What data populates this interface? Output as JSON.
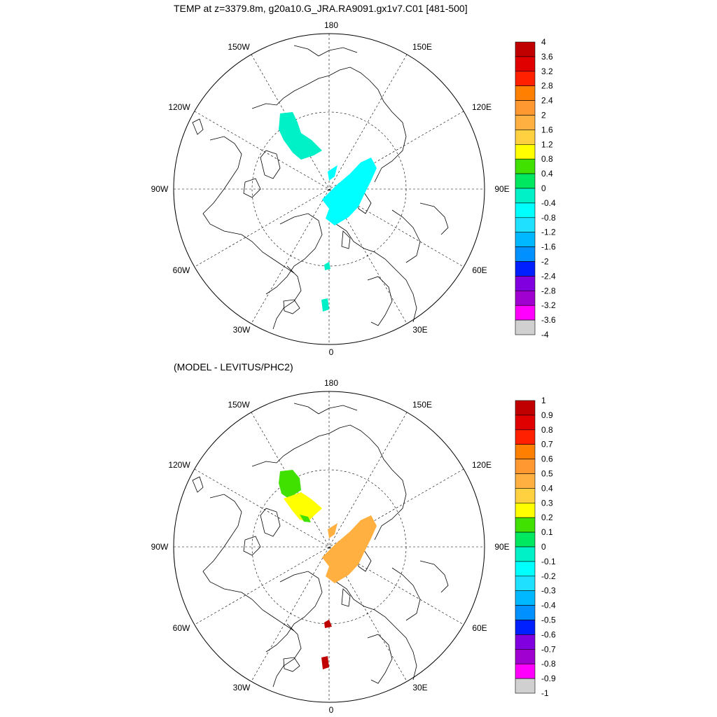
{
  "top_panel": {
    "title": "TEMP at z=3379.8m, g20a10.G_JRA.RA9091.gx1v7.C01 [481-500]",
    "longitude_labels": [
      "180",
      "150E",
      "120E",
      "90E",
      "60E",
      "30E",
      "0",
      "30W",
      "60W",
      "90W",
      "120W",
      "150W"
    ],
    "colorbar": {
      "labels": [
        "4",
        "3.6",
        "3.2",
        "2.8",
        "2.4",
        "2",
        "1.6",
        "1.2",
        "0.8",
        "0.4",
        "0",
        "-0.4",
        "-0.8",
        "-1.2",
        "-1.6",
        "-2",
        "-2.4",
        "-2.8",
        "-3.2",
        "-3.6",
        "-4"
      ],
      "colors": [
        "#c00000",
        "#e00000",
        "#ff2000",
        "#ff8000",
        "#ff9830",
        "#ffb040",
        "#ffd040",
        "#ffff00",
        "#40e000",
        "#00e860",
        "#00f0c8",
        "#00ffff",
        "#20e0ff",
        "#00b8ff",
        "#0090ff",
        "#0020ff",
        "#8000e0",
        "#a000d0",
        "#ff00ff",
        "#d0d0d0",
        "#707070"
      ]
    }
  },
  "bottom_panel": {
    "title": "(MODEL - LEVITUS/PHC2)",
    "longitude_labels": [
      "180",
      "150E",
      "120E",
      "90E",
      "60E",
      "30E",
      "0",
      "30W",
      "60W",
      "90W",
      "120W",
      "150W"
    ],
    "colorbar": {
      "labels": [
        "1",
        "0.9",
        "0.8",
        "0.7",
        "0.6",
        "0.5",
        "0.4",
        "0.3",
        "0.2",
        "0.1",
        "0",
        "-0.1",
        "-0.2",
        "-0.3",
        "-0.4",
        "-0.5",
        "-0.6",
        "-0.7",
        "-0.8",
        "-0.9",
        "-1"
      ],
      "colors": [
        "#c00000",
        "#e00000",
        "#ff2000",
        "#ff8000",
        "#ff9830",
        "#ffb040",
        "#ffd040",
        "#ffff00",
        "#40e000",
        "#00e860",
        "#00f0c8",
        "#00ffff",
        "#20e0ff",
        "#00b8ff",
        "#0090ff",
        "#0020ff",
        "#8000e0",
        "#a000d0",
        "#ff00ff",
        "#d0d0d0",
        "#707070"
      ]
    }
  }
}
